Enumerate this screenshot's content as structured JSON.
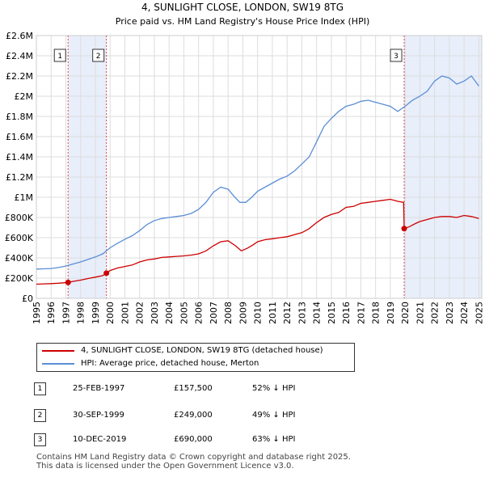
{
  "chart_data": {
    "type": "line",
    "title": "4, SUNLIGHT CLOSE, LONDON, SW19 8TG",
    "subtitle": "Price paid vs. HM Land Registry's House Price Index (HPI)",
    "x_ticks": [
      "1995",
      "1996",
      "1997",
      "1998",
      "1999",
      "2000",
      "2001",
      "2002",
      "2003",
      "2004",
      "2005",
      "2006",
      "2007",
      "2008",
      "2009",
      "2010",
      "2011",
      "2012",
      "2013",
      "2014",
      "2015",
      "2016",
      "2017",
      "2018",
      "2019",
      "2020",
      "2021",
      "2022",
      "2023",
      "2024",
      "2025"
    ],
    "y_ticks": [
      "£0",
      "£200K",
      "£400K",
      "£600K",
      "£800K",
      "£1M",
      "£1.2M",
      "£1.4M",
      "£1.6M",
      "£1.8M",
      "£2M",
      "£2.2M",
      "£2.4M",
      "£2.6M"
    ],
    "xlim": [
      1995,
      2025.2
    ],
    "ylim": [
      0,
      2600000
    ],
    "grid": true,
    "series": [
      {
        "name": "4, SUNLIGHT CLOSE, LONDON, SW19 8TG (detached house)",
        "color": "#cc0000",
        "x": [
          1995.0,
          1995.5,
          1996.0,
          1996.5,
          1997.15,
          1997.5,
          1998.0,
          1998.5,
          1999.0,
          1999.5,
          1999.75,
          2000.0,
          2000.5,
          2001.0,
          2001.5,
          2002.0,
          2002.5,
          2003.0,
          2003.5,
          2004.0,
          2004.5,
          2005.0,
          2005.5,
          2006.0,
          2006.5,
          2007.0,
          2007.5,
          2008.0,
          2008.5,
          2008.9,
          2009.3,
          2009.7,
          2010.0,
          2010.5,
          2011.0,
          2011.5,
          2012.0,
          2012.5,
          2013.0,
          2013.5,
          2014.0,
          2014.5,
          2015.0,
          2015.5,
          2016.0,
          2016.5,
          2017.0,
          2017.5,
          2018.0,
          2018.5,
          2019.0,
          2019.5,
          2019.9,
          2019.94,
          2020.3,
          2020.7,
          2021.0,
          2021.5,
          2022.0,
          2022.5,
          2023.0,
          2023.5,
          2024.0,
          2024.5,
          2025.0
        ],
        "y": [
          140000,
          143000,
          146000,
          150000,
          157500,
          168000,
          180000,
          196000,
          210000,
          225000,
          249000,
          275000,
          300000,
          315000,
          330000,
          360000,
          380000,
          390000,
          405000,
          410000,
          415000,
          420000,
          428000,
          440000,
          470000,
          520000,
          560000,
          570000,
          520000,
          470000,
          495000,
          530000,
          560000,
          580000,
          590000,
          600000,
          610000,
          630000,
          650000,
          690000,
          750000,
          800000,
          830000,
          850000,
          900000,
          910000,
          940000,
          950000,
          960000,
          970000,
          980000,
          960000,
          950000,
          690000,
          710000,
          740000,
          760000,
          780000,
          800000,
          810000,
          810000,
          800000,
          820000,
          810000,
          790000
        ]
      },
      {
        "name": "HPI: Average price, detached house, Merton",
        "color": "#5b8ed6",
        "x": [
          1995.0,
          1995.5,
          1996.0,
          1996.5,
          1997.0,
          1997.5,
          1998.0,
          1998.5,
          1999.0,
          1999.5,
          2000.0,
          2000.5,
          2001.0,
          2001.5,
          2002.0,
          2002.5,
          2003.0,
          2003.5,
          2004.0,
          2004.5,
          2005.0,
          2005.5,
          2006.0,
          2006.5,
          2007.0,
          2007.5,
          2008.0,
          2008.4,
          2008.8,
          2009.2,
          2009.6,
          2010.0,
          2010.5,
          2011.0,
          2011.5,
          2012.0,
          2012.5,
          2013.0,
          2013.5,
          2014.0,
          2014.5,
          2015.0,
          2015.5,
          2016.0,
          2016.5,
          2017.0,
          2017.5,
          2018.0,
          2018.5,
          2019.0,
          2019.5,
          2020.0,
          2020.5,
          2021.0,
          2021.5,
          2022.0,
          2022.5,
          2023.0,
          2023.5,
          2024.0,
          2024.5,
          2025.0
        ],
        "y": [
          290000,
          292000,
          295000,
          305000,
          320000,
          340000,
          360000,
          385000,
          410000,
          440000,
          500000,
          545000,
          585000,
          620000,
          670000,
          730000,
          770000,
          790000,
          800000,
          810000,
          820000,
          840000,
          880000,
          950000,
          1050000,
          1100000,
          1080000,
          1010000,
          950000,
          950000,
          1000000,
          1060000,
          1100000,
          1140000,
          1180000,
          1210000,
          1260000,
          1330000,
          1400000,
          1550000,
          1700000,
          1780000,
          1850000,
          1900000,
          1920000,
          1950000,
          1960000,
          1940000,
          1920000,
          1900000,
          1850000,
          1900000,
          1960000,
          2000000,
          2050000,
          2150000,
          2200000,
          2180000,
          2120000,
          2150000,
          2200000,
          2100000
        ]
      }
    ],
    "sales": [
      {
        "marker": "1",
        "x": 1997.15,
        "y": 157500,
        "date": "25-FEB-1997",
        "price": "£157,500",
        "hpi": "52% ↓ HPI"
      },
      {
        "marker": "2",
        "x": 1999.75,
        "y": 249000,
        "date": "30-SEP-1999",
        "price": "£249,000",
        "hpi": "49% ↓ HPI"
      },
      {
        "marker": "3",
        "x": 2019.94,
        "y": 690000,
        "date": "10-DEC-2019",
        "price": "£690,000",
        "hpi": "63% ↓ HPI"
      }
    ],
    "shaded_ranges": [
      [
        1997.15,
        1999.75
      ],
      [
        2019.94,
        2025.2
      ]
    ]
  },
  "legend": {
    "property_label": "4, SUNLIGHT CLOSE, LONDON, SW19 8TG (detached house)",
    "hpi_label": "HPI: Average price, detached house, Merton"
  },
  "colors": {
    "property": "#cc0000",
    "hpi": "#5b8ed6",
    "shade": "#e8eefa"
  },
  "footer": {
    "line1": "Contains HM Land Registry data © Crown copyright and database right 2025.",
    "line2": "This data is licensed under the Open Government Licence v3.0."
  }
}
